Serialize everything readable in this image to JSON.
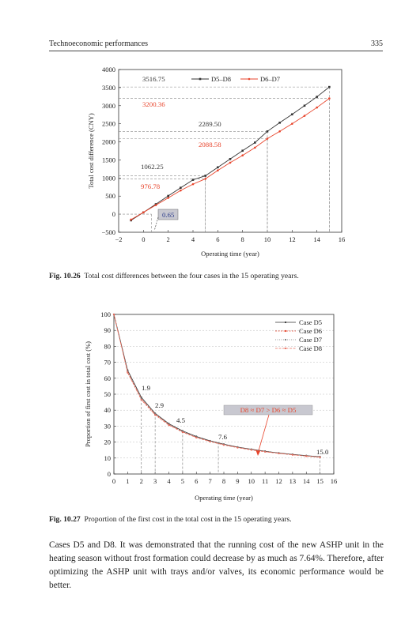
{
  "running_head": {
    "title": "Technoeconomic performances",
    "page_number": "335"
  },
  "figure_1": {
    "caption_label": "Fig. 10.26",
    "caption_text": "Total cost differences between the four cases in the 15 operating years."
  },
  "figure_2": {
    "caption_label": "Fig. 10.27",
    "caption_text": "Proportion of the first cost in the total cost in the 15 operating years."
  },
  "body_text": "Cases D5 and D8. It was demonstrated that the running cost of the new ASHP unit in the heating season without frost formation could decrease by as much as 7.64%. Therefore, after optimizing the ASHP unit with trays and/or valves, its economic performance would be better.",
  "colors": {
    "black_series": "#333333",
    "red_series": "#e8452c",
    "grid": "#bbbbbb",
    "highlight_box": "#c8c8d0"
  },
  "chart_data": [
    {
      "type": "line",
      "xlabel": "Operating time (year)",
      "ylabel": "Total cost difference (CNY)",
      "xlim": [
        -2,
        16
      ],
      "ylim": [
        -500,
        4000
      ],
      "xticks": [
        -2,
        0,
        2,
        4,
        6,
        8,
        10,
        12,
        14,
        16
      ],
      "yticks": [
        -500,
        0,
        500,
        1000,
        1500,
        2000,
        2500,
        3000,
        3500,
        4000
      ],
      "legend_position": "top-center",
      "grid": false,
      "series": [
        {
          "name": "D5–D8",
          "color": "#333333",
          "x": [
            -1,
            0,
            1,
            2,
            3,
            4,
            5,
            6,
            7,
            8,
            9,
            10,
            11,
            12,
            13,
            14,
            15
          ],
          "y": [
            -170,
            50,
            275,
            505,
            730,
            950,
            1062.25,
            1295,
            1525,
            1755,
            1980,
            2289.5,
            2530,
            2760,
            3000,
            3245,
            3516.75
          ]
        },
        {
          "name": "D6–D7",
          "color": "#e8452c",
          "x": [
            -1,
            0,
            1,
            2,
            3,
            4,
            5,
            6,
            7,
            8,
            9,
            10,
            11,
            12,
            13,
            14,
            15
          ],
          "y": [
            -150,
            50,
            250,
            450,
            655,
            830,
            976.78,
            1210,
            1425,
            1625,
            1840,
            2088.58,
            2290,
            2500,
            2720,
            2950,
            3200.36
          ]
        }
      ],
      "annotations": [
        {
          "text": "3516.75",
          "color": "#333333",
          "x": 15,
          "y": 3516.75
        },
        {
          "text": "3200.36",
          "color": "#e8452c",
          "x": 15,
          "y": 3200.36
        },
        {
          "text": "2289.50",
          "color": "#333333",
          "x": 10,
          "y": 2289.5
        },
        {
          "text": "2088.58",
          "color": "#e8452c",
          "x": 10,
          "y": 2088.58
        },
        {
          "text": "1062.25",
          "color": "#333333",
          "x": 5,
          "y": 1062.25
        },
        {
          "text": "976.78",
          "color": "#e8452c",
          "x": 5,
          "y": 976.78
        },
        {
          "text": "0.65",
          "color": "#333333",
          "x": 0.65,
          "y": 0
        }
      ]
    },
    {
      "type": "line",
      "xlabel": "Operating time (year)",
      "ylabel": "Proportion of first cost in total cost (%)",
      "xlim": [
        0,
        16
      ],
      "ylim": [
        0,
        100
      ],
      "xticks": [
        0,
        1,
        2,
        3,
        4,
        5,
        6,
        7,
        8,
        9,
        10,
        11,
        12,
        13,
        14,
        15,
        16
      ],
      "yticks": [
        0,
        10,
        20,
        30,
        40,
        50,
        60,
        70,
        80,
        90,
        100
      ],
      "legend_position": "top-right",
      "grid": true,
      "x": [
        0,
        1,
        2,
        3,
        4,
        5,
        6,
        7,
        8,
        9,
        10,
        11,
        12,
        13,
        14,
        15
      ],
      "series": [
        {
          "name": "Case D5",
          "color": "#333333",
          "values": [
            100,
            65,
            48,
            38,
            31.5,
            27,
            23.5,
            20.8,
            18.7,
            16.9,
            15.5,
            14.3,
            13.2,
            12.3,
            11.5,
            10.8
          ]
        },
        {
          "name": "Case D6",
          "color": "#e8452c",
          "values": [
            100,
            64,
            47,
            37.5,
            31,
            26.5,
            23,
            20.5,
            18.4,
            16.7,
            15.3,
            14.1,
            13.0,
            12.1,
            11.3,
            10.6
          ]
        },
        {
          "name": "Case D7",
          "color": "#777777",
          "values": [
            100,
            64.5,
            47.5,
            37.8,
            31.2,
            26.7,
            23.2,
            20.6,
            18.5,
            16.8,
            15.4,
            14.2,
            13.1,
            12.2,
            11.4,
            10.7
          ]
        },
        {
          "name": "Case D8",
          "color": "#e87060",
          "values": [
            100,
            63.5,
            46.5,
            37,
            30.6,
            26.2,
            22.8,
            20.3,
            18.2,
            16.5,
            15.1,
            13.9,
            12.9,
            12.0,
            11.2,
            10.5
          ]
        }
      ],
      "annotations": [
        {
          "text": "1.9",
          "x": 2,
          "y": 47
        },
        {
          "text": "2.9",
          "x": 3,
          "y": 38
        },
        {
          "text": "4.5",
          "x": 5,
          "y": 27
        },
        {
          "text": "7.6",
          "x": 7.6,
          "y": 20
        },
        {
          "text": "15.0",
          "x": 15,
          "y": 11
        },
        {
          "text": "D8 ≈ D7 > D6 ≈ D5",
          "x": 11,
          "y": 41
        }
      ]
    }
  ]
}
